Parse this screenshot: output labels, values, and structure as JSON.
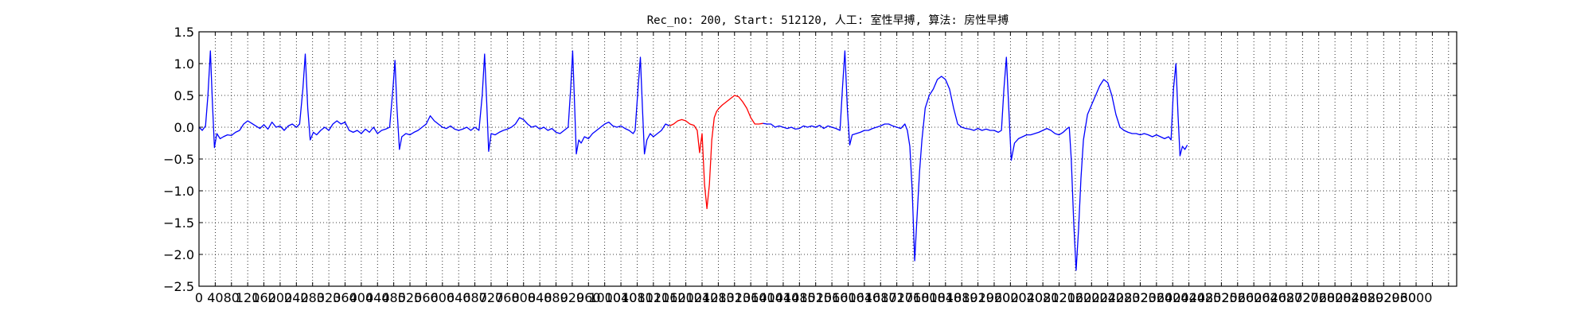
{
  "chart_data": {
    "type": "line",
    "title": "Rec_no: 200, Start: 512120, 人工: 室性早搏, 算法: 房性早搏",
    "xlabel": "",
    "ylabel": "",
    "xlim": [
      0,
      3100
    ],
    "ylim": [
      -2.5,
      1.5
    ],
    "x_ticks": [
      0,
      40,
      80,
      120,
      160,
      200,
      240,
      280,
      320,
      360,
      400,
      440,
      480,
      520,
      560,
      600,
      640,
      680,
      720,
      760,
      800,
      840,
      880,
      920,
      960,
      1000,
      1040,
      1080,
      1120,
      1160,
      1200,
      1240,
      1280,
      1320,
      1360,
      1400,
      1440,
      1480,
      1520,
      1560,
      1600,
      1640,
      1680,
      1720,
      1760,
      1800,
      1840,
      1880,
      1920,
      1960,
      2000,
      2040,
      2080,
      2120,
      2160,
      2200,
      2240,
      2280,
      2320,
      2360,
      2400,
      2440,
      2480,
      2520,
      2560,
      2600,
      2640,
      2680,
      2720,
      2760,
      2800,
      2840,
      2880,
      2920,
      2960,
      3000,
      3040,
      3080
    ],
    "x_tick_labels": [
      "0",
      "40",
      "80",
      "120",
      "160",
      "200",
      "240",
      "280",
      "320",
      "360",
      "400",
      "440",
      "480",
      "520",
      "560",
      "600",
      "640",
      "680",
      "720",
      "760",
      "800",
      "840",
      "880",
      "920",
      "960",
      "1000",
      "1040",
      "1080",
      "1120",
      "1160",
      "1200",
      "1240",
      "1280",
      "1320",
      "1360",
      "1400",
      "1440",
      "1480",
      "1520",
      "1560",
      "1600",
      "1640",
      "1680",
      "1720",
      "1760",
      "1800",
      "1840",
      "1880",
      "1920",
      "1960",
      "2000",
      "2040",
      "2080",
      "2120",
      "2160",
      "2200",
      "2240",
      "2280",
      "2320",
      "2360",
      "2400",
      "2440",
      "2480",
      "2520",
      "2560",
      "2600",
      "2640",
      "2680",
      "2720",
      "2760",
      "2800",
      "2840",
      "2880",
      "2920",
      "2960",
      "3000",
      "",
      ""
    ],
    "y_ticks": [
      -2.5,
      -2.0,
      -1.5,
      -1.0,
      -0.5,
      0.0,
      0.5,
      1.0,
      1.5
    ],
    "y_tick_labels": [
      "−2.5",
      "−2.0",
      "−1.5",
      "−1.0",
      "−0.5",
      "0.0",
      "0.5",
      "1.0",
      "1.5"
    ],
    "grid": true,
    "series": [
      {
        "color": "#0000ff",
        "points": [
          [
            0,
            0
          ],
          [
            8,
            -0.05
          ],
          [
            16,
            0.02
          ],
          [
            22,
            0.5
          ],
          [
            28,
            1.2
          ],
          [
            33,
            0.4
          ],
          [
            38,
            -0.32
          ],
          [
            44,
            -0.1
          ],
          [
            52,
            -0.18
          ],
          [
            60,
            -0.15
          ],
          [
            70,
            -0.12
          ],
          [
            80,
            -0.13
          ],
          [
            90,
            -0.08
          ],
          [
            100,
            -0.05
          ],
          [
            110,
            0.05
          ],
          [
            120,
            0.1
          ],
          [
            130,
            0.06
          ],
          [
            140,
            0.02
          ],
          [
            150,
            -0.02
          ],
          [
            160,
            0.04
          ],
          [
            170,
            -0.03
          ],
          [
            180,
            0.08
          ],
          [
            190,
            0.0
          ],
          [
            200,
            0.02
          ],
          [
            210,
            -0.05
          ],
          [
            220,
            0.02
          ],
          [
            230,
            0.05
          ],
          [
            240,
            0.0
          ],
          [
            248,
            0.05
          ],
          [
            256,
            0.6
          ],
          [
            262,
            1.15
          ],
          [
            268,
            0.3
          ],
          [
            274,
            -0.2
          ],
          [
            282,
            -0.08
          ],
          [
            290,
            -0.12
          ],
          [
            300,
            -0.05
          ],
          [
            310,
            0.0
          ],
          [
            320,
            -0.05
          ],
          [
            330,
            0.05
          ],
          [
            340,
            0.1
          ],
          [
            350,
            0.05
          ],
          [
            360,
            0.08
          ],
          [
            370,
            -0.05
          ],
          [
            380,
            -0.08
          ],
          [
            390,
            -0.05
          ],
          [
            400,
            -0.1
          ],
          [
            410,
            -0.03
          ],
          [
            420,
            -0.08
          ],
          [
            430,
            0.0
          ],
          [
            440,
            -0.1
          ],
          [
            450,
            -0.05
          ],
          [
            460,
            -0.03
          ],
          [
            470,
            0.0
          ],
          [
            478,
            0.6
          ],
          [
            483,
            1.05
          ],
          [
            488,
            0.3
          ],
          [
            494,
            -0.35
          ],
          [
            500,
            -0.15
          ],
          [
            510,
            -0.1
          ],
          [
            520,
            -0.12
          ],
          [
            530,
            -0.08
          ],
          [
            540,
            -0.05
          ],
          [
            550,
            0.0
          ],
          [
            560,
            0.05
          ],
          [
            570,
            0.18
          ],
          [
            580,
            0.1
          ],
          [
            590,
            0.05
          ],
          [
            600,
            0.0
          ],
          [
            610,
            -0.02
          ],
          [
            620,
            0.02
          ],
          [
            630,
            -0.03
          ],
          [
            640,
            -0.05
          ],
          [
            650,
            -0.03
          ],
          [
            660,
            0.0
          ],
          [
            670,
            -0.05
          ],
          [
            680,
            0.0
          ],
          [
            690,
            -0.05
          ],
          [
            698,
            0.5
          ],
          [
            704,
            1.15
          ],
          [
            709,
            0.4
          ],
          [
            714,
            -0.38
          ],
          [
            720,
            -0.1
          ],
          [
            730,
            -0.12
          ],
          [
            740,
            -0.08
          ],
          [
            750,
            -0.05
          ],
          [
            760,
            -0.03
          ],
          [
            770,
            0.0
          ],
          [
            780,
            0.05
          ],
          [
            790,
            0.15
          ],
          [
            800,
            0.12
          ],
          [
            810,
            0.05
          ],
          [
            820,
            0.0
          ],
          [
            830,
            0.02
          ],
          [
            840,
            -0.03
          ],
          [
            850,
            0.0
          ],
          [
            860,
            -0.05
          ],
          [
            870,
            -0.02
          ],
          [
            880,
            -0.08
          ],
          [
            890,
            -0.1
          ],
          [
            900,
            -0.05
          ],
          [
            910,
            0.0
          ],
          [
            916,
            0.6
          ],
          [
            921,
            1.2
          ],
          [
            926,
            0.3
          ],
          [
            930,
            -0.42
          ],
          [
            936,
            -0.2
          ],
          [
            942,
            -0.25
          ],
          [
            950,
            -0.15
          ],
          [
            960,
            -0.18
          ],
          [
            970,
            -0.1
          ],
          [
            980,
            -0.05
          ],
          [
            990,
            0.0
          ],
          [
            1000,
            0.05
          ],
          [
            1010,
            0.08
          ],
          [
            1020,
            0.02
          ],
          [
            1030,
            0.0
          ],
          [
            1040,
            0.02
          ],
          [
            1050,
            -0.02
          ],
          [
            1060,
            -0.05
          ],
          [
            1070,
            -0.1
          ],
          [
            1075,
            -0.05
          ],
          [
            1082,
            0.6
          ],
          [
            1088,
            1.1
          ],
          [
            1093,
            0.3
          ],
          [
            1098,
            -0.42
          ],
          [
            1104,
            -0.2
          ],
          [
            1112,
            -0.1
          ],
          [
            1120,
            -0.15
          ],
          [
            1130,
            -0.1
          ],
          [
            1140,
            -0.05
          ],
          [
            1150,
            0.05
          ],
          [
            1160,
            0.02
          ]
        ]
      },
      {
        "color": "#ff0000",
        "points": [
          [
            1160,
            0.02
          ],
          [
            1170,
            0.05
          ],
          [
            1180,
            0.1
          ],
          [
            1190,
            0.12
          ],
          [
            1200,
            0.1
          ],
          [
            1210,
            0.05
          ],
          [
            1220,
            0.03
          ],
          [
            1228,
            -0.05
          ],
          [
            1234,
            -0.4
          ],
          [
            1240,
            -0.1
          ],
          [
            1246,
            -0.9
          ],
          [
            1252,
            -1.28
          ],
          [
            1258,
            -0.9
          ],
          [
            1264,
            -0.2
          ],
          [
            1270,
            0.15
          ],
          [
            1276,
            0.25
          ],
          [
            1282,
            0.3
          ],
          [
            1290,
            0.35
          ],
          [
            1300,
            0.4
          ],
          [
            1310,
            0.45
          ],
          [
            1320,
            0.5
          ],
          [
            1330,
            0.48
          ],
          [
            1340,
            0.4
          ],
          [
            1350,
            0.3
          ],
          [
            1360,
            0.15
          ],
          [
            1370,
            0.05
          ],
          [
            1380,
            0.05
          ],
          [
            1390,
            0.06
          ]
        ]
      },
      {
        "color": "#0000ff",
        "points": [
          [
            1390,
            0.06
          ],
          [
            1400,
            0.05
          ],
          [
            1410,
            0.05
          ],
          [
            1420,
            0.0
          ],
          [
            1430,
            0.02
          ],
          [
            1440,
            0.0
          ],
          [
            1450,
            -0.02
          ],
          [
            1460,
            0.0
          ],
          [
            1470,
            -0.03
          ],
          [
            1480,
            -0.02
          ],
          [
            1490,
            0.02
          ],
          [
            1500,
            0.0
          ],
          [
            1510,
            0.02
          ],
          [
            1520,
            0.0
          ],
          [
            1530,
            0.03
          ],
          [
            1540,
            -0.02
          ],
          [
            1550,
            0.02
          ],
          [
            1560,
            0.0
          ],
          [
            1570,
            -0.02
          ],
          [
            1580,
            -0.05
          ],
          [
            1586,
            0.6
          ],
          [
            1592,
            1.2
          ],
          [
            1598,
            0.3
          ],
          [
            1604,
            -0.28
          ],
          [
            1610,
            -0.12
          ],
          [
            1620,
            -0.1
          ],
          [
            1630,
            -0.08
          ],
          [
            1640,
            -0.05
          ],
          [
            1650,
            -0.05
          ],
          [
            1660,
            -0.02
          ],
          [
            1670,
            0.0
          ],
          [
            1680,
            0.02
          ],
          [
            1690,
            0.05
          ],
          [
            1700,
            0.05
          ],
          [
            1710,
            0.02
          ],
          [
            1720,
            0.0
          ],
          [
            1730,
            -0.02
          ],
          [
            1740,
            0.05
          ],
          [
            1746,
            -0.05
          ],
          [
            1752,
            -0.3
          ],
          [
            1758,
            -1.0
          ],
          [
            1764,
            -2.1
          ],
          [
            1770,
            -1.4
          ],
          [
            1776,
            -0.7
          ],
          [
            1782,
            -0.2
          ],
          [
            1790,
            0.3
          ],
          [
            1800,
            0.5
          ],
          [
            1810,
            0.6
          ],
          [
            1820,
            0.75
          ],
          [
            1830,
            0.8
          ],
          [
            1840,
            0.75
          ],
          [
            1850,
            0.6
          ],
          [
            1860,
            0.3
          ],
          [
            1870,
            0.05
          ],
          [
            1880,
            0.0
          ],
          [
            1890,
            -0.02
          ],
          [
            1900,
            -0.03
          ],
          [
            1910,
            -0.05
          ],
          [
            1920,
            -0.02
          ],
          [
            1930,
            -0.05
          ],
          [
            1940,
            -0.03
          ],
          [
            1950,
            -0.05
          ],
          [
            1960,
            -0.05
          ],
          [
            1970,
            -0.08
          ],
          [
            1978,
            -0.05
          ],
          [
            1984,
            0.6
          ],
          [
            1990,
            1.1
          ],
          [
            1996,
            0.3
          ],
          [
            2002,
            -0.52
          ],
          [
            2010,
            -0.25
          ],
          [
            2020,
            -0.18
          ],
          [
            2030,
            -0.15
          ],
          [
            2040,
            -0.12
          ],
          [
            2050,
            -0.12
          ],
          [
            2060,
            -0.1
          ],
          [
            2070,
            -0.08
          ],
          [
            2080,
            -0.05
          ],
          [
            2090,
            -0.02
          ],
          [
            2100,
            -0.05
          ],
          [
            2110,
            -0.1
          ],
          [
            2120,
            -0.12
          ],
          [
            2130,
            -0.08
          ],
          [
            2140,
            -0.02
          ],
          [
            2145,
            0.0
          ],
          [
            2150,
            -0.5
          ],
          [
            2156,
            -1.5
          ],
          [
            2162,
            -2.25
          ],
          [
            2168,
            -1.6
          ],
          [
            2174,
            -0.8
          ],
          [
            2180,
            -0.2
          ],
          [
            2190,
            0.2
          ],
          [
            2200,
            0.35
          ],
          [
            2210,
            0.5
          ],
          [
            2220,
            0.65
          ],
          [
            2230,
            0.75
          ],
          [
            2240,
            0.7
          ],
          [
            2250,
            0.5
          ],
          [
            2260,
            0.2
          ],
          [
            2270,
            0.0
          ],
          [
            2280,
            -0.05
          ],
          [
            2290,
            -0.08
          ],
          [
            2300,
            -0.1
          ],
          [
            2310,
            -0.1
          ],
          [
            2320,
            -0.12
          ],
          [
            2330,
            -0.1
          ],
          [
            2340,
            -0.12
          ],
          [
            2350,
            -0.15
          ],
          [
            2360,
            -0.12
          ],
          [
            2370,
            -0.15
          ],
          [
            2380,
            -0.18
          ],
          [
            2390,
            -0.15
          ],
          [
            2396,
            -0.2
          ],
          [
            2402,
            0.6
          ],
          [
            2408,
            1.0
          ],
          [
            2413,
            0.2
          ],
          [
            2418,
            -0.45
          ],
          [
            2424,
            -0.3
          ],
          [
            2430,
            -0.35
          ],
          [
            2436,
            -0.28
          ]
        ]
      }
    ]
  }
}
